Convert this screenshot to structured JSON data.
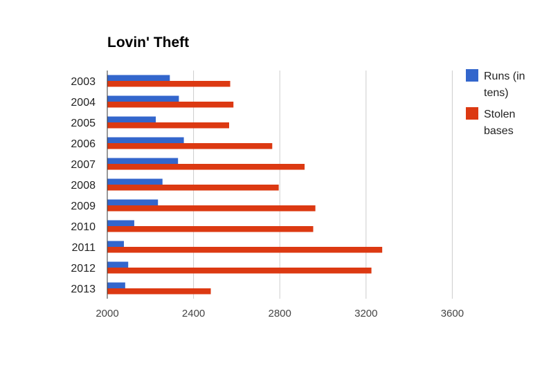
{
  "chart_data": {
    "type": "bar",
    "orientation": "horizontal",
    "title": "Lovin' Theft",
    "xlabel": "",
    "ylabel": "",
    "categories": [
      "2003",
      "2004",
      "2005",
      "2006",
      "2007",
      "2008",
      "2009",
      "2010",
      "2011",
      "2012",
      "2013"
    ],
    "series": [
      {
        "name": "Runs (in tens)",
        "color": "#3366cc",
        "values": [
          2290,
          2332,
          2225,
          2355,
          2328,
          2256,
          2235,
          2125,
          2077,
          2097,
          2083
        ]
      },
      {
        "name": "Stolen bases",
        "color": "#dc3912",
        "values": [
          2570,
          2585,
          2565,
          2765,
          2915,
          2795,
          2965,
          2955,
          3275,
          3225,
          2480
        ]
      }
    ],
    "xlim": [
      2000,
      3800
    ],
    "x_ticks": [
      "2000",
      "2400",
      "2800",
      "3200",
      "3600"
    ],
    "grid": true,
    "legend_position": "right",
    "legend_lines": [
      [
        "Runs (in",
        "tens)"
      ],
      [
        "Stolen",
        "bases"
      ]
    ]
  }
}
